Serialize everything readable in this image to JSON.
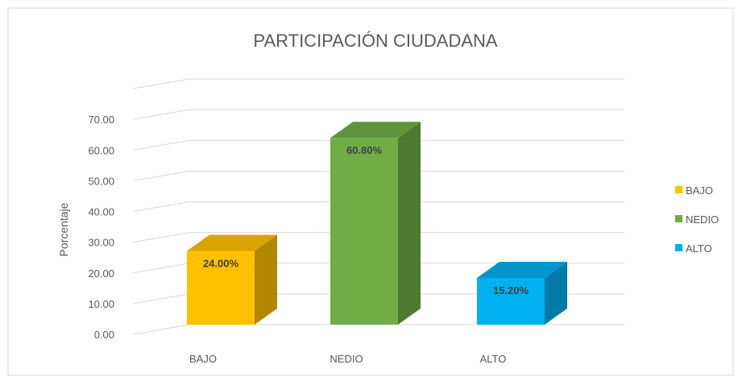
{
  "chart_data": {
    "type": "bar3d",
    "title": "PARTICIPACIÓN CIUDADANA",
    "y_label": "Porcentaje",
    "categories": [
      "BAJO",
      "NEDIO",
      "ALTO"
    ],
    "values": [
      24,
      60.8,
      15.2
    ],
    "value_labels": [
      "24.00%",
      "60.80%",
      "15.20%"
    ],
    "colors": [
      "#FFC000",
      "#70AD47",
      "#00B0F0"
    ],
    "ylim": [
      0,
      80
    ],
    "yticks": [
      {
        "value": 0,
        "label": "0.00"
      },
      {
        "value": 10,
        "label": "10.00"
      },
      {
        "value": 20,
        "label": "20.00"
      },
      {
        "value": 30,
        "label": "30.00"
      },
      {
        "value": 40,
        "label": "40.00"
      },
      {
        "value": 50,
        "label": "50.00"
      },
      {
        "value": 60,
        "label": "60.00"
      },
      {
        "value": 70,
        "label": "70.00"
      }
    ],
    "grid": true,
    "legend": "right"
  }
}
